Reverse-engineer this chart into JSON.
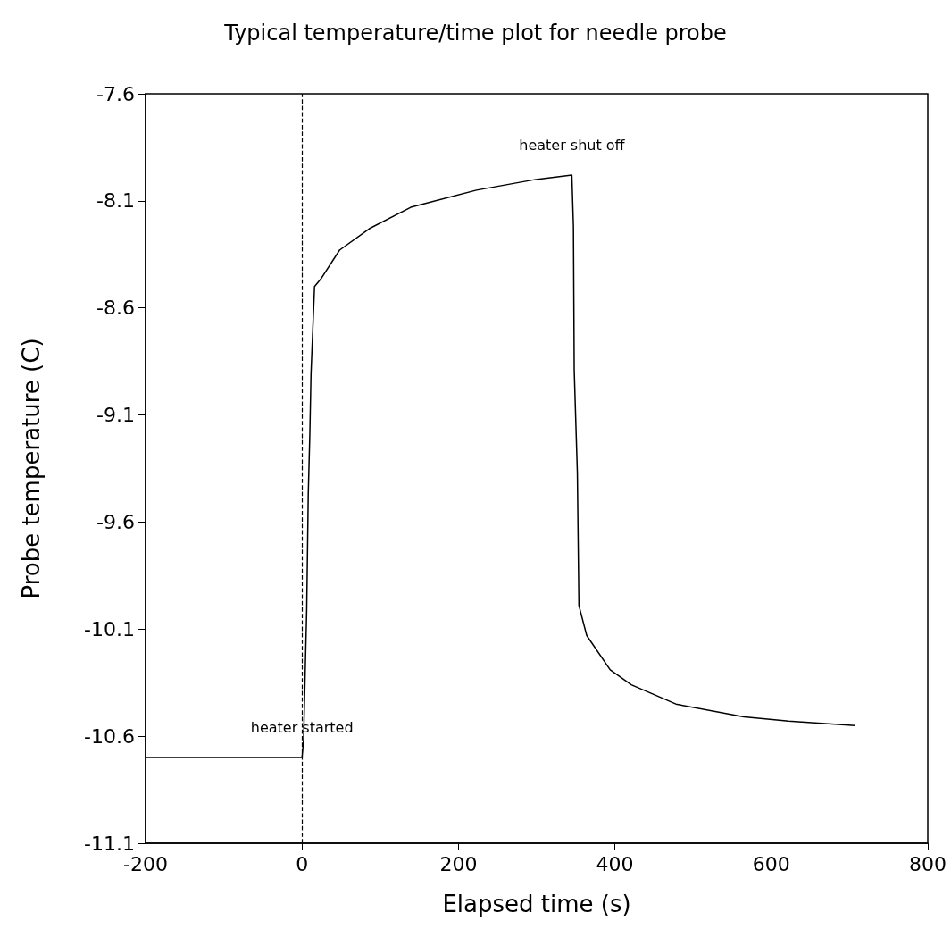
{
  "chart_data": {
    "type": "line",
    "title": "Typical temperature/time plot for needle probe",
    "xlabel": "Elapsed time (s)",
    "ylabel": "Probe temperature (C)",
    "x": [
      -200,
      0,
      2,
      6,
      8,
      10,
      11.5,
      16,
      25,
      48,
      86,
      139,
      223,
      299,
      345,
      347,
      348,
      352,
      354,
      364,
      394,
      421,
      478,
      565,
      622,
      707
    ],
    "series": [
      {
        "color": "#000000",
        "values": [
          -10.7,
          -10.7,
          -10.62,
          -10.01,
          -9.47,
          -9.19,
          -8.91,
          -8.5,
          -8.46,
          -8.33,
          -8.23,
          -8.13,
          -8.05,
          -8.0,
          -7.98,
          -8.22,
          -8.89,
          -9.37,
          -9.99,
          -10.13,
          -10.29,
          -10.36,
          -10.45,
          -10.51,
          -10.53,
          -10.55
        ]
      }
    ],
    "xlim": [
      -200,
      800
    ],
    "xticks": [
      -200,
      0,
      200,
      400,
      600,
      800
    ],
    "ylim": [
      -11.1,
      -7.6
    ],
    "yticks": [
      -11.1,
      -10.6,
      -10.1,
      -9.6,
      -9.1,
      -8.6,
      -8.1,
      -7.6
    ],
    "ref_lines": [
      {
        "axis": "x",
        "value": 0,
        "color": "#000000",
        "line_style": "dashed"
      }
    ],
    "annotations": [
      {
        "text": "heater started",
        "x": 0,
        "y": -10.7
      },
      {
        "text": "heater shut off",
        "x": 345,
        "y": -7.98
      }
    ],
    "grid": false,
    "marker": "none",
    "line_style": "solid"
  }
}
